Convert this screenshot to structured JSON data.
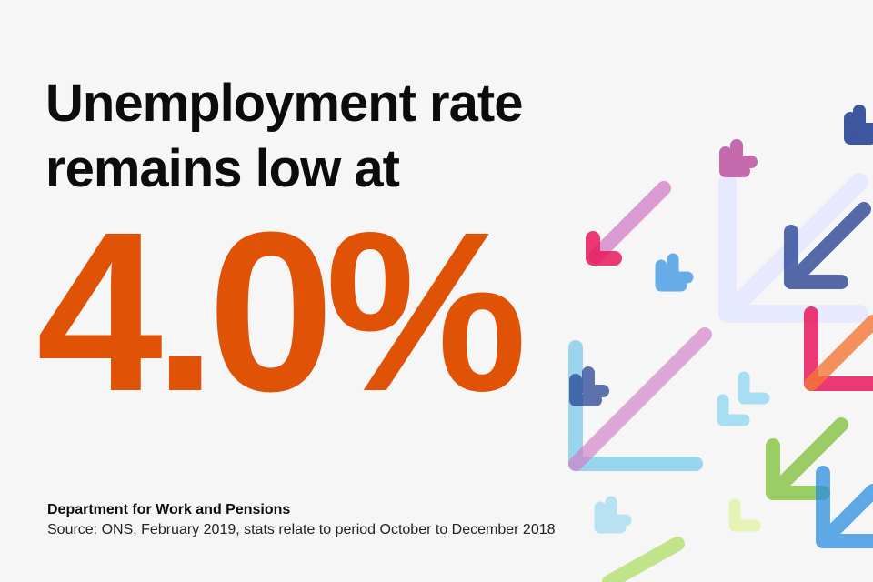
{
  "headline": {
    "line1": "Unemployment rate",
    "line2": "remains low at"
  },
  "stat": {
    "value": "4.0%",
    "color": "#e05206"
  },
  "footer": {
    "organisation": "Department for Work and Pensions",
    "source": "Source: ONS, February 2019, stats relate to period October to December 2018"
  },
  "decoration": {
    "icon": "arrow-down-left-icon",
    "colors": [
      "#1d3b8f",
      "#c2187a",
      "#5bc0e8",
      "#d17bc4",
      "#f47738",
      "#e8175d",
      "#85c441",
      "#b7e078",
      "#c9d5ff"
    ]
  }
}
